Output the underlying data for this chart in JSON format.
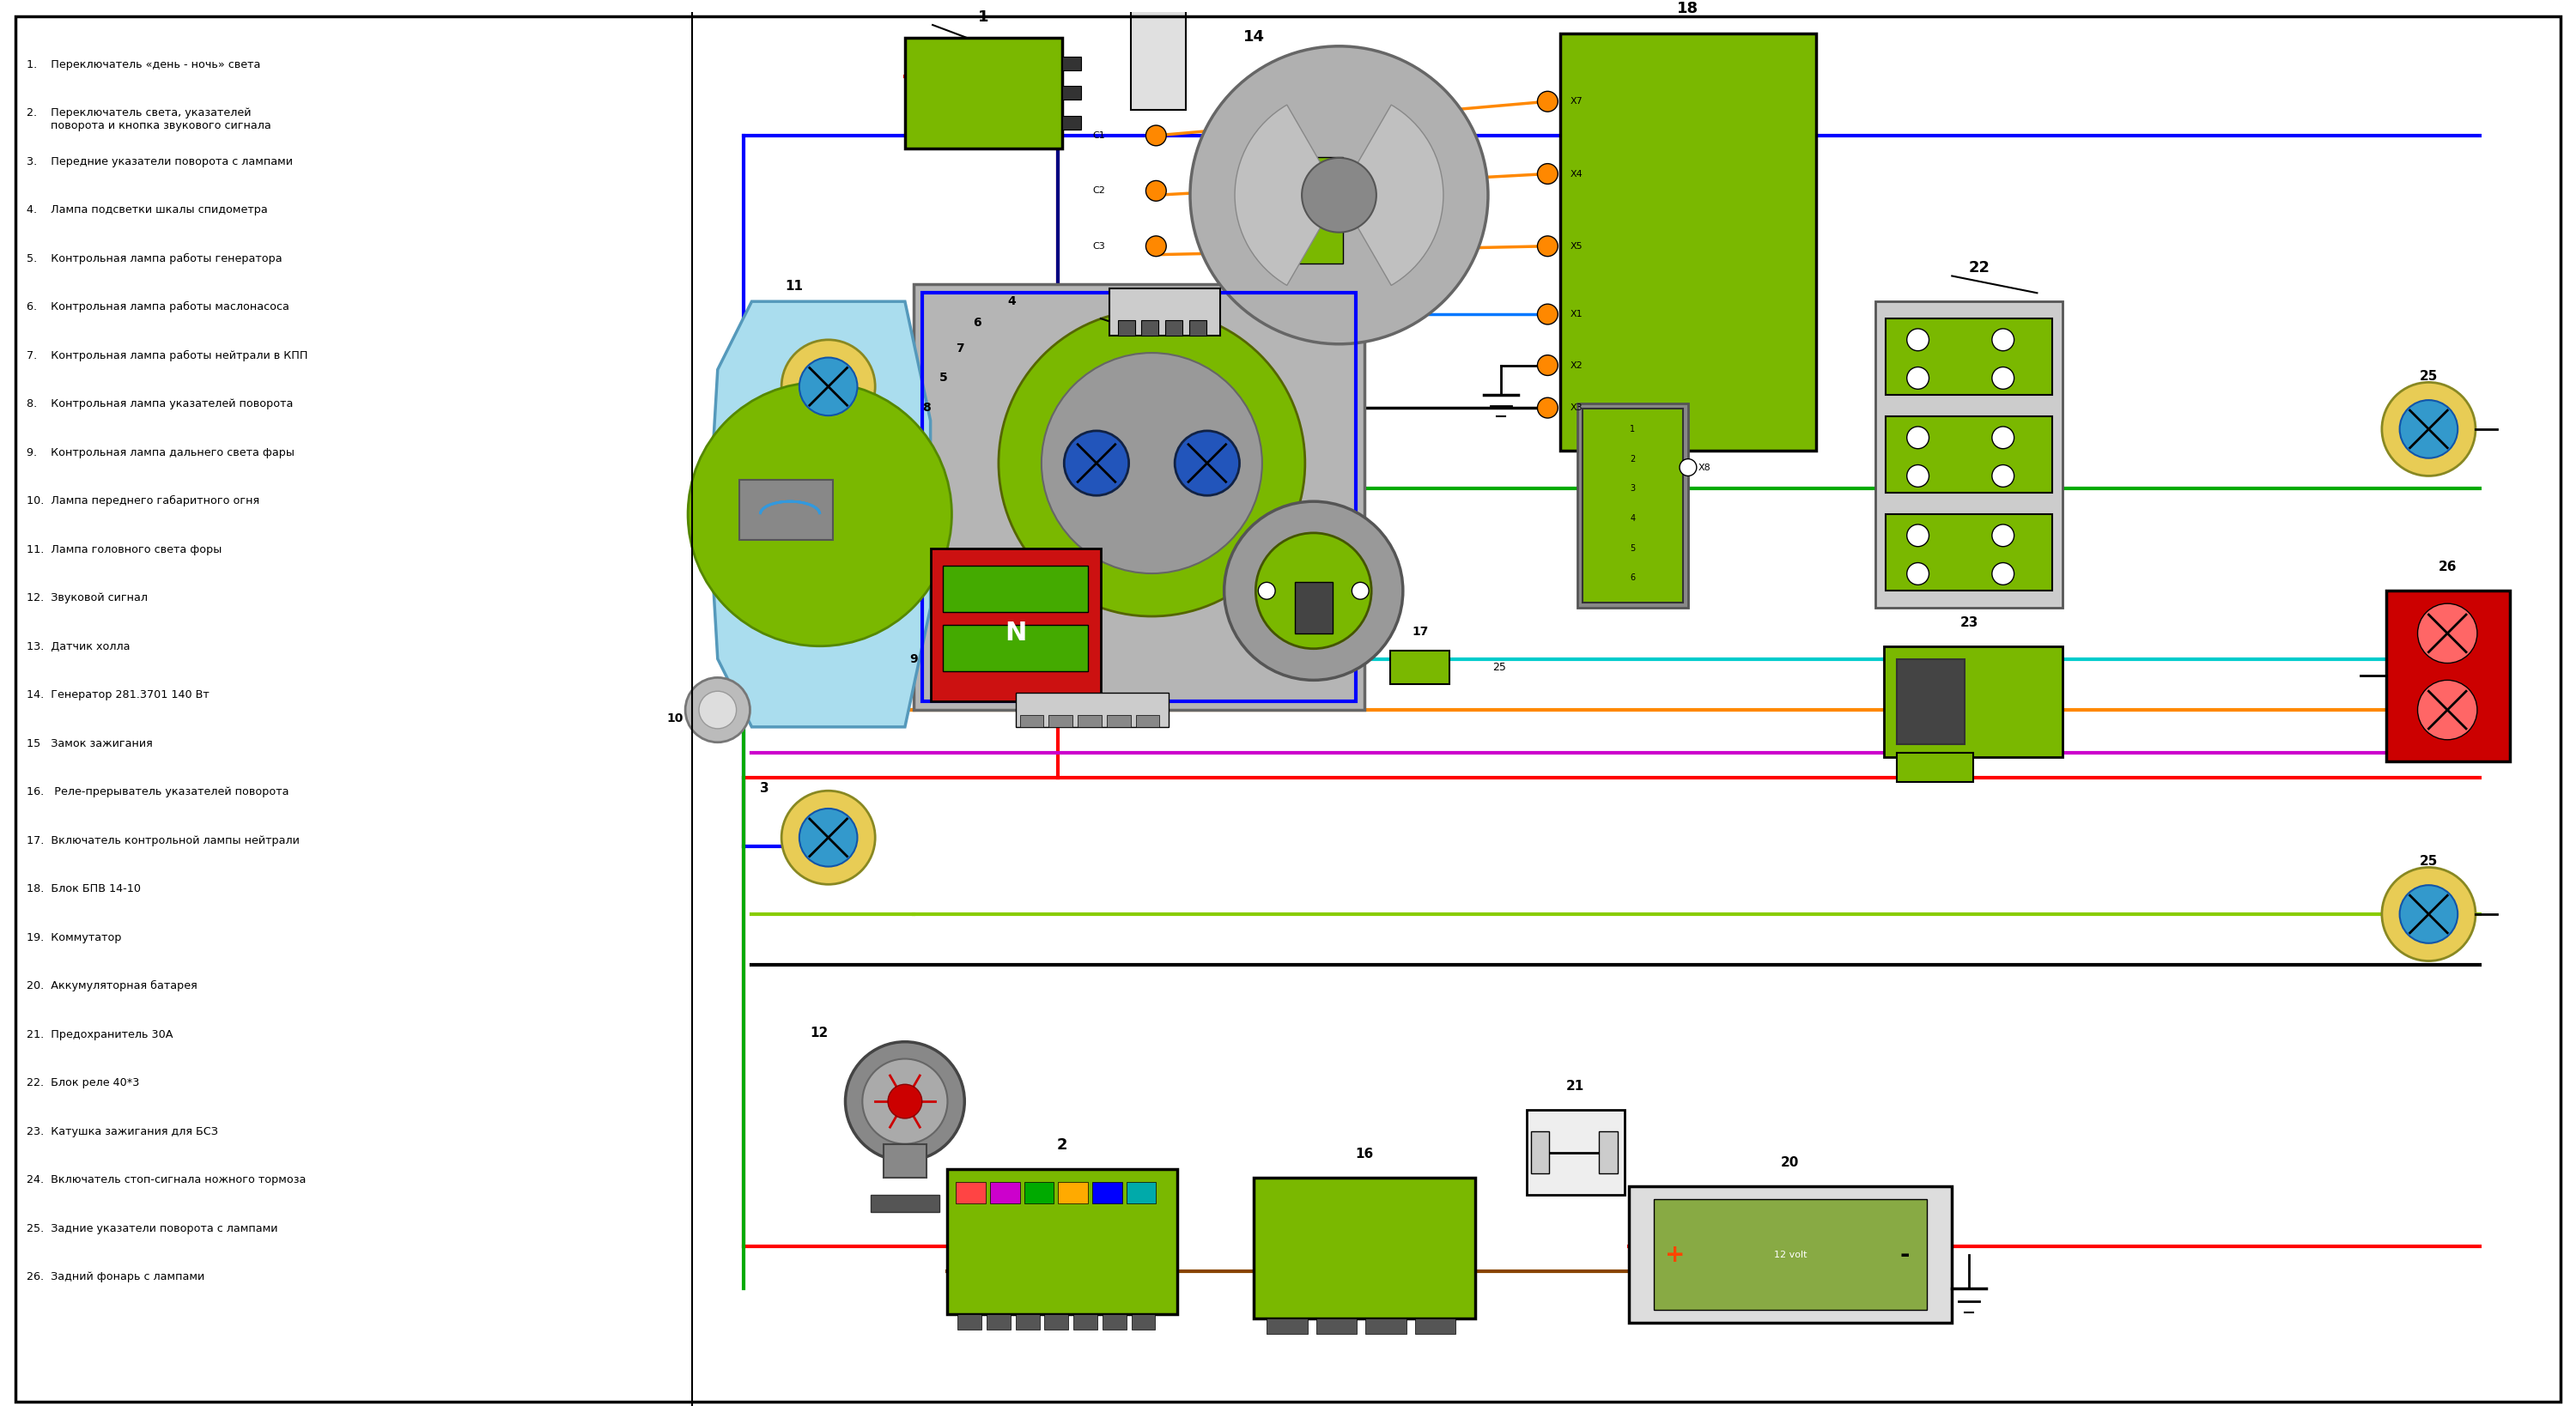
{
  "bg_color": "#ffffff",
  "legend_items": [
    "1.    Переключатель «день - ночь» света",
    "2.    Переключатель света, указателей\n       поворота и кнопка звукового сигнала",
    "3.    Передние указатели поворота с лампами",
    "4.    Лампа подсветки шкалы спидометра",
    "5.    Контрольная лампа работы генератора",
    "6.    Контрольная лампа работы маслонасоса",
    "7.    Контрольная лампа работы нейтрали в КПП",
    "8.    Контрольная лампа указателей поворота",
    "9.    Контрольная лампа дальнего света фары",
    "10.  Лампа переднего габаритного огня",
    "11.  Лампа головного света форы",
    "12.  Звуковой сигнал",
    "13.  Датчик холла",
    "14.  Генератор 281.3701 140 Вт",
    "15   Замок зажигания",
    "16.   Реле-прерыватель указателей поворота",
    "17.  Включатель контрольной лампы нейтрали",
    "18.  Блок БПВ 14-10",
    "19.  Коммутатор",
    "20.  Аккумуляторная батарея",
    "21.  Предохранитель 30А",
    "22.  Блок реле 40*3",
    "23.  Катушка зажигания для БСЗ",
    "24.  Включатель стоп-сигнала ножного тормоза",
    "25.  Задние указатели поворота с лампами",
    "26.  Задний фонарь с лампами"
  ],
  "wire_colors": {
    "blue": "#0000ff",
    "red": "#ff0000",
    "green": "#00aa00",
    "orange": "#ff8800",
    "cyan": "#00cccc",
    "magenta": "#cc00cc",
    "black": "#000000",
    "darkblue": "#000080",
    "brown": "#884400",
    "lime": "#88cc00",
    "white": "#ffffff"
  }
}
